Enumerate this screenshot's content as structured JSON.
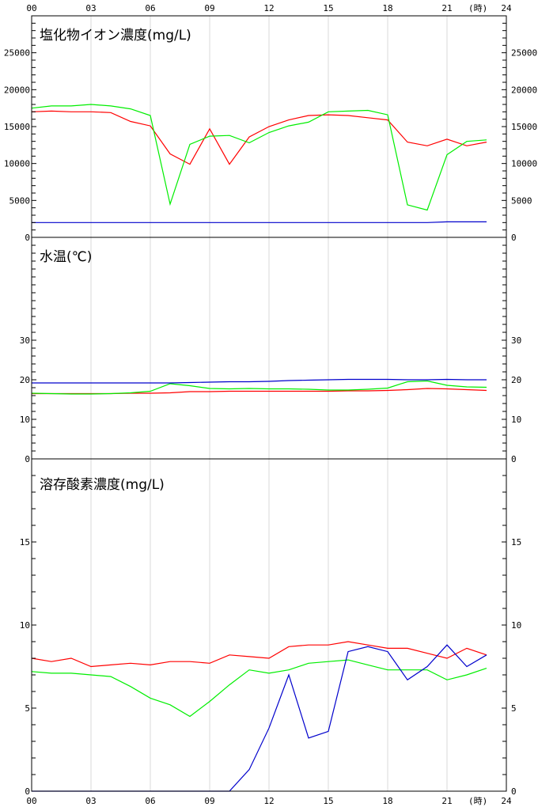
{
  "x_axis": {
    "ticks": [
      "00",
      "03",
      "06",
      "09",
      "12",
      "15",
      "18",
      "21",
      "24"
    ],
    "unit": "(時)"
  },
  "chart_data": [
    {
      "type": "line",
      "title": "塩化物イオン濃度(mg/L)",
      "xlabel": "(時)",
      "ylabel": "",
      "xlim": [
        0,
        24
      ],
      "ylim": [
        0,
        30000
      ],
      "yticks_left": [
        "0",
        "5000",
        "10000",
        "15000",
        "20000",
        "25000"
      ],
      "yticks_right": [
        "0",
        "5000",
        "10000",
        "15000",
        "20000",
        "25000"
      ],
      "ytick_values": [
        0,
        5000,
        10000,
        15000,
        20000,
        25000
      ],
      "grid": "vertical",
      "x": [
        0,
        1,
        2,
        3,
        4,
        5,
        6,
        7,
        8,
        9,
        10,
        11,
        12,
        13,
        14,
        15,
        16,
        17,
        18,
        19,
        20,
        21,
        22,
        23
      ],
      "series": [
        {
          "color": "#ff0000",
          "values": [
            17000,
            17100,
            17000,
            17000,
            16900,
            15700,
            15100,
            11300,
            9900,
            14700,
            9900,
            13600,
            15000,
            15900,
            16500,
            16600,
            16500,
            16200,
            15900,
            12900,
            12400,
            13300,
            12400,
            12900
          ]
        },
        {
          "color": "#00ee00",
          "values": [
            17500,
            17800,
            17800,
            18000,
            17800,
            17400,
            16500,
            4500,
            12600,
            13700,
            13800,
            12800,
            14200,
            15100,
            15600,
            17000,
            17100,
            17200,
            16600,
            4400,
            3700,
            11200,
            13000,
            13200
          ]
        },
        {
          "color": "#0000cc",
          "values": [
            2000,
            2000,
            2000,
            2000,
            2000,
            2000,
            2000,
            2000,
            2000,
            2000,
            2000,
            2000,
            2000,
            2000,
            2000,
            2000,
            2000,
            2000,
            2000,
            2000,
            2000,
            2100,
            2100,
            2100
          ]
        }
      ]
    },
    {
      "type": "line",
      "title": "水温(℃)",
      "xlabel": "(時)",
      "ylabel": "",
      "xlim": [
        0,
        24
      ],
      "ylim": [
        0,
        56
      ],
      "yticks_left": [
        "0",
        "10",
        "20",
        "30"
      ],
      "yticks_right": [
        "0",
        "10",
        "20",
        "30"
      ],
      "ytick_values": [
        0,
        10,
        20,
        30
      ],
      "grid": "vertical",
      "x": [
        0,
        1,
        2,
        3,
        4,
        5,
        6,
        7,
        8,
        9,
        10,
        11,
        12,
        13,
        14,
        15,
        16,
        17,
        18,
        19,
        20,
        21,
        22,
        23
      ],
      "series": [
        {
          "color": "#ff0000",
          "values": [
            16.5,
            16.5,
            16.5,
            16.5,
            16.5,
            16.6,
            16.6,
            16.7,
            17.0,
            17.0,
            17.1,
            17.1,
            17.1,
            17.1,
            17.1,
            17.1,
            17.2,
            17.2,
            17.3,
            17.5,
            17.8,
            17.7,
            17.5,
            17.3
          ]
        },
        {
          "color": "#00ee00",
          "values": [
            16.6,
            16.5,
            16.4,
            16.4,
            16.5,
            16.7,
            17.1,
            19.0,
            18.5,
            17.8,
            17.7,
            17.8,
            17.7,
            17.7,
            17.6,
            17.4,
            17.4,
            17.6,
            17.9,
            19.5,
            19.7,
            18.6,
            18.2,
            18.1
          ]
        },
        {
          "color": "#0000cc",
          "values": [
            19.2,
            19.2,
            19.2,
            19.2,
            19.2,
            19.2,
            19.2,
            19.2,
            19.3,
            19.4,
            19.5,
            19.5,
            19.6,
            19.8,
            19.9,
            20.0,
            20.1,
            20.1,
            20.1,
            20.0,
            20.0,
            20.1,
            20.0,
            20.0
          ]
        }
      ]
    },
    {
      "type": "line",
      "title": "溶存酸素濃度(mg/L)",
      "xlabel": "(時)",
      "ylabel": "",
      "xlim": [
        0,
        24
      ],
      "ylim": [
        0,
        20
      ],
      "yticks_left": [
        "0",
        "5",
        "10",
        "15"
      ],
      "yticks_right": [
        "0",
        "5",
        "10",
        "15"
      ],
      "ytick_values": [
        0,
        5,
        10,
        15
      ],
      "grid": "vertical",
      "x": [
        0,
        1,
        2,
        3,
        4,
        5,
        6,
        7,
        8,
        9,
        10,
        11,
        12,
        13,
        14,
        15,
        16,
        17,
        18,
        19,
        20,
        21,
        22,
        23
      ],
      "series": [
        {
          "color": "#ff0000",
          "values": [
            8.0,
            7.8,
            8.0,
            7.5,
            7.6,
            7.7,
            7.6,
            7.8,
            7.8,
            7.7,
            8.2,
            8.1,
            8.0,
            8.7,
            8.8,
            8.8,
            9.0,
            8.8,
            8.6,
            8.6,
            8.3,
            8.0,
            8.6,
            8.2
          ]
        },
        {
          "color": "#00ee00",
          "values": [
            7.2,
            7.1,
            7.1,
            7.0,
            6.9,
            6.3,
            5.6,
            5.2,
            4.5,
            5.4,
            6.4,
            7.3,
            7.1,
            7.3,
            7.7,
            7.8,
            7.9,
            7.6,
            7.3,
            7.3,
            7.3,
            6.7,
            7.0,
            7.4
          ]
        },
        {
          "color": "#0000cc",
          "values": [
            0,
            0,
            0,
            0,
            0,
            0,
            0,
            0,
            0,
            0,
            0,
            1.3,
            3.8,
            7.0,
            3.2,
            3.6,
            8.4,
            8.7,
            8.4,
            6.7,
            7.5,
            8.8,
            7.5,
            8.2
          ]
        }
      ]
    }
  ]
}
